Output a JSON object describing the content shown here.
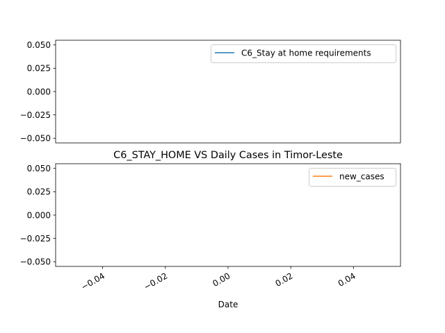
{
  "chart_data": [
    {
      "type": "line",
      "title": "",
      "xlabel": "",
      "ylabel": "",
      "series": [
        {
          "name": "C6_Stay at home requirements",
          "color": "#1f77b4",
          "x": [],
          "values": []
        }
      ],
      "ylim": [
        -0.055,
        0.055
      ],
      "xlim": [
        -0.055,
        0.055
      ],
      "yticks": [
        "0.050",
        "0.025",
        "0.000",
        "−0.025",
        "−0.050"
      ],
      "ytick_values": [
        0.05,
        0.025,
        0.0,
        -0.025,
        -0.05
      ],
      "xticks": [],
      "grid": false,
      "legend": "top-right"
    },
    {
      "type": "line",
      "title": "C6_STAY_HOME VS Daily Cases in Timor-Leste",
      "xlabel": "Date",
      "ylabel": "",
      "series": [
        {
          "name": "new_cases",
          "color": "#ff7f0e",
          "x": [],
          "values": []
        }
      ],
      "ylim": [
        -0.055,
        0.055
      ],
      "xlim": [
        -0.055,
        0.055
      ],
      "yticks": [
        "0.050",
        "0.025",
        "0.000",
        "−0.025",
        "−0.050"
      ],
      "ytick_values": [
        0.05,
        0.025,
        0.0,
        -0.025,
        -0.05
      ],
      "xticks": [
        "−0.04",
        "−0.02",
        "0.00",
        "0.02",
        "0.04"
      ],
      "xtick_values": [
        -0.04,
        -0.02,
        0.0,
        0.02,
        0.04
      ],
      "grid": false,
      "legend": "top-right"
    }
  ]
}
